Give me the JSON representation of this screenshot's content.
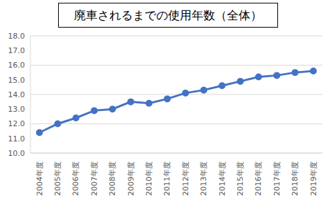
{
  "chart_data": {
    "type": "line",
    "title": "廃車されるまでの使用年数（全体）",
    "categories": [
      "2004年度",
      "2005年度",
      "2006年度",
      "2007年度",
      "2008年度",
      "2009年度",
      "2010年度",
      "2011年度",
      "2012年度",
      "2013年度",
      "2014年度",
      "2015年度",
      "2016年度",
      "2017年度",
      "2018年度",
      "2019年度"
    ],
    "values": [
      11.4,
      12.0,
      12.4,
      12.9,
      13.0,
      13.5,
      13.4,
      13.7,
      14.1,
      14.3,
      14.6,
      14.9,
      15.2,
      15.3,
      15.5,
      15.6
    ],
    "color": "#4472c4",
    "marker": "circle",
    "ylim": [
      10,
      18
    ],
    "yticks": [
      {
        "value": 10,
        "label": "10.0"
      },
      {
        "value": 11,
        "label": "11.0"
      },
      {
        "value": 12,
        "label": "12.0"
      },
      {
        "value": 13,
        "label": "13.0"
      },
      {
        "value": 14,
        "label": "14.0"
      },
      {
        "value": 15,
        "label": "15.0"
      },
      {
        "value": 16,
        "label": "16.0"
      },
      {
        "value": 17,
        "label": "17.0"
      },
      {
        "value": 18,
        "label": "18.0"
      }
    ],
    "grid": true
  }
}
